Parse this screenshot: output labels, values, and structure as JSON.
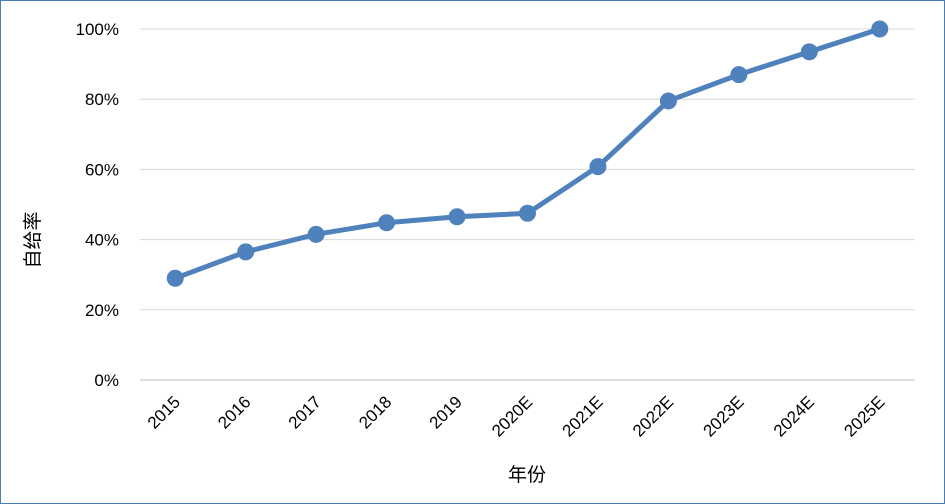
{
  "chart_data": {
    "type": "line",
    "title": "",
    "xlabel": "年份",
    "ylabel": "自给率",
    "categories": [
      "2015",
      "2016",
      "2017",
      "2018",
      "2019",
      "2020E",
      "2021E",
      "2022E",
      "2023E",
      "2024E",
      "2025E"
    ],
    "series": [
      {
        "values": [
          29,
          36.5,
          41.5,
          44.8,
          46.5,
          47.5,
          60.8,
          79.5,
          87,
          93.5,
          100
        ]
      }
    ],
    "ylim": [
      0,
      100
    ],
    "yticks": [
      "0%",
      "20%",
      "40%",
      "60%",
      "80%",
      "100%"
    ],
    "ytick_values": [
      0,
      20,
      40,
      60,
      80,
      100
    ],
    "grid": true,
    "legend": "none",
    "colors": {
      "line": "#4f81bd",
      "grid": "#d9d9d9",
      "border": "#4a7ebb"
    }
  }
}
